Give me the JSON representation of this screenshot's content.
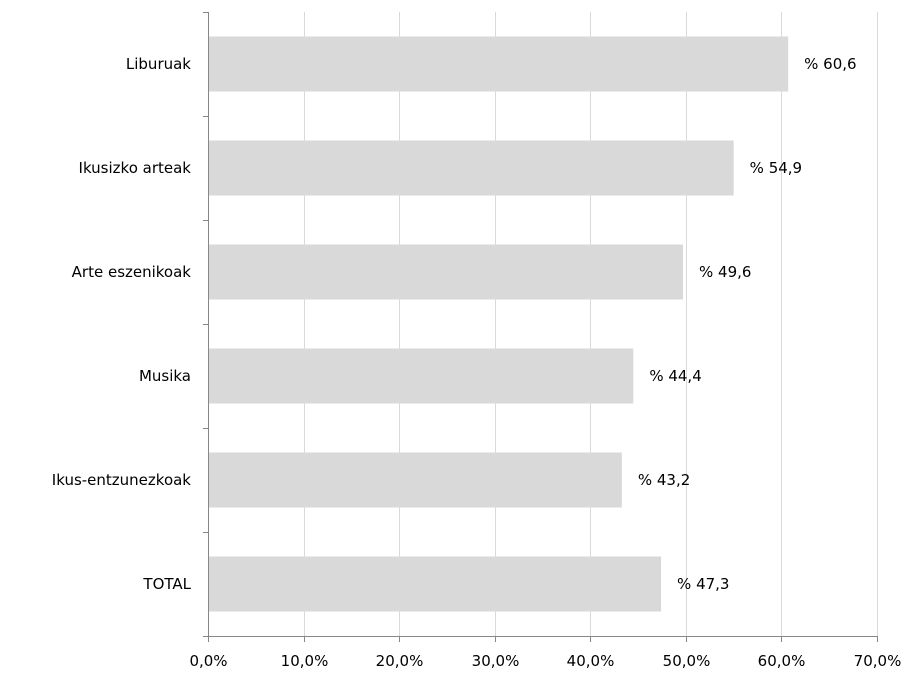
{
  "chart_data": {
    "type": "bar",
    "orientation": "horizontal",
    "categories": [
      "Liburuak",
      "Ikusizko arteak",
      "Arte eszenikoak",
      "Musika",
      "Ikus-entzunezkoak",
      "TOTAL"
    ],
    "values": [
      60.6,
      54.9,
      49.6,
      44.4,
      43.2,
      47.3
    ],
    "data_labels": [
      "% 60,6",
      "% 54,9",
      "% 49,6",
      "% 44,4",
      "% 43,2",
      "% 47,3"
    ],
    "xlim": [
      0,
      70
    ],
    "x_ticks": [
      0,
      10,
      20,
      30,
      40,
      50,
      60,
      70
    ],
    "x_tick_labels": [
      "0,0%",
      "10,0%",
      "20,0%",
      "30,0%",
      "40,0%",
      "50,0%",
      "60,0%",
      "70,0%"
    ],
    "grid": "vertical",
    "bar_color": "#d9d9d9",
    "gridline_color": "#d9d9d9",
    "axis_color": "#868686",
    "title": "",
    "xlabel": "",
    "ylabel": ""
  }
}
